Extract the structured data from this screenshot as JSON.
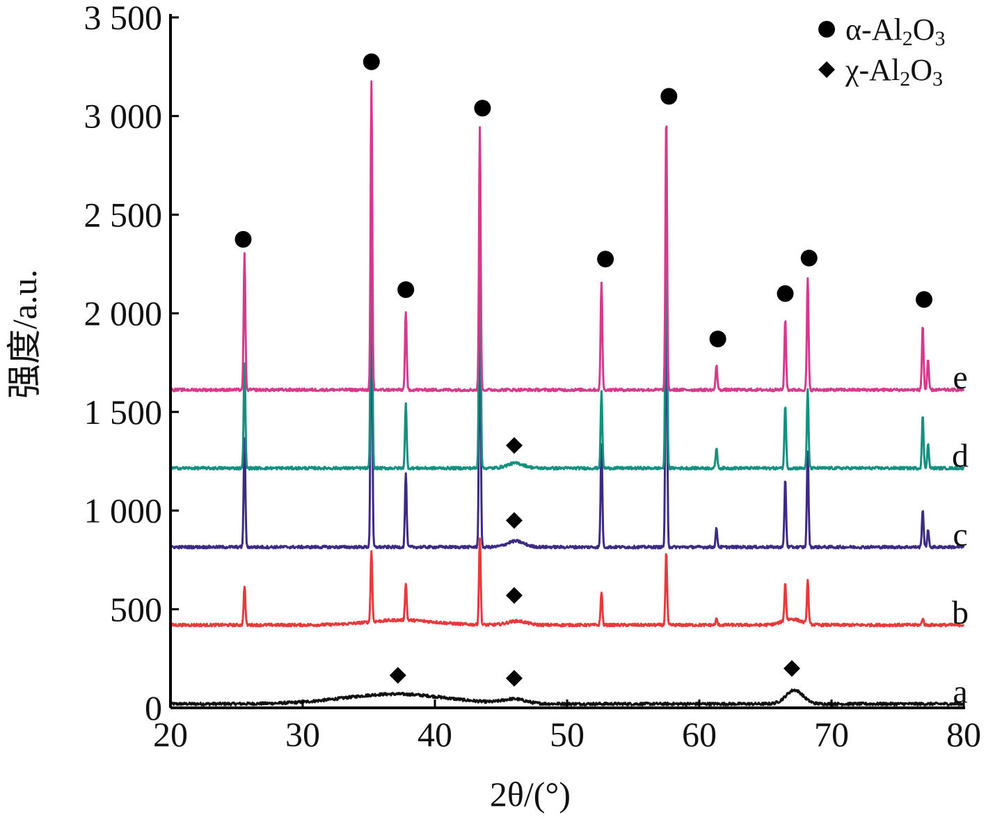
{
  "chart_data": {
    "type": "line",
    "xlabel": "2θ/(°)",
    "ylabel": "强度/a.u.",
    "xlim": [
      20,
      80
    ],
    "ylim": [
      0,
      3500
    ],
    "xticks": [
      20,
      30,
      40,
      50,
      60,
      70,
      80
    ],
    "yticks": [
      0,
      500,
      1000,
      1500,
      2000,
      2500,
      3000,
      3500
    ],
    "ytick_labels": [
      "0",
      "500",
      "1 000",
      "1 500",
      "2 000",
      "2 500",
      "3 000",
      "3 500"
    ],
    "grid": false,
    "legend_position": "top-right",
    "legend": [
      {
        "marker": "circle",
        "label": "α-Al2O3",
        "parts": [
          "α-Al",
          "2",
          "O",
          "3"
        ]
      },
      {
        "marker": "diamond",
        "label": "χ-Al2O3",
        "parts": [
          "χ-Al",
          "2",
          "O",
          "3"
        ]
      }
    ],
    "series": [
      {
        "name": "a",
        "color": "#111111",
        "baseline": 20,
        "humps": [
          {
            "x": 37.0,
            "height": 50,
            "width": 5.5
          },
          {
            "x": 46.0,
            "height": 22,
            "width": 1.2
          },
          {
            "x": 67.2,
            "height": 70,
            "width": 0.9
          }
        ],
        "peaks": []
      },
      {
        "name": "b",
        "color": "#e8393c",
        "baseline": 420,
        "humps": [
          {
            "x": 37.5,
            "height": 25,
            "width": 3.5
          },
          {
            "x": 46.2,
            "height": 20,
            "width": 1.0
          },
          {
            "x": 67.0,
            "height": 30,
            "width": 1.0
          }
        ],
        "peaks": [
          {
            "x": 25.6,
            "y": 620
          },
          {
            "x": 35.2,
            "y": 780
          },
          {
            "x": 37.8,
            "y": 610
          },
          {
            "x": 43.4,
            "y": 860
          },
          {
            "x": 52.6,
            "y": 590
          },
          {
            "x": 57.5,
            "y": 790
          },
          {
            "x": 61.3,
            "y": 450
          },
          {
            "x": 66.5,
            "y": 610
          },
          {
            "x": 68.2,
            "y": 640
          },
          {
            "x": 76.9,
            "y": 455
          }
        ]
      },
      {
        "name": "c",
        "color": "#3d2a85",
        "baseline": 815,
        "humps": [
          {
            "x": 46.1,
            "height": 30,
            "width": 0.9
          }
        ],
        "peaks": [
          {
            "x": 25.6,
            "y": 1370
          },
          {
            "x": 35.2,
            "y": 2320
          },
          {
            "x": 37.8,
            "y": 1190
          },
          {
            "x": 43.4,
            "y": 2130
          },
          {
            "x": 52.6,
            "y": 1340
          },
          {
            "x": 57.5,
            "y": 2290
          },
          {
            "x": 61.3,
            "y": 910
          },
          {
            "x": 66.5,
            "y": 1160
          },
          {
            "x": 68.2,
            "y": 1300
          },
          {
            "x": 76.9,
            "y": 1010
          },
          {
            "x": 77.3,
            "y": 900
          }
        ]
      },
      {
        "name": "d",
        "color": "#13907f",
        "baseline": 1215,
        "humps": [
          {
            "x": 46.1,
            "height": 25,
            "width": 0.9
          }
        ],
        "peaks": [
          {
            "x": 25.6,
            "y": 1750
          },
          {
            "x": 35.2,
            "y": 2800
          },
          {
            "x": 37.8,
            "y": 1540
          },
          {
            "x": 43.4,
            "y": 2700
          },
          {
            "x": 52.6,
            "y": 1600
          },
          {
            "x": 57.5,
            "y": 2870
          },
          {
            "x": 61.3,
            "y": 1320
          },
          {
            "x": 66.5,
            "y": 1540
          },
          {
            "x": 68.2,
            "y": 1610
          },
          {
            "x": 76.9,
            "y": 1480
          },
          {
            "x": 77.3,
            "y": 1340
          }
        ]
      },
      {
        "name": "e",
        "color": "#d63a8c",
        "baseline": 1612,
        "humps": [],
        "peaks": [
          {
            "x": 25.6,
            "y": 2300
          },
          {
            "x": 35.2,
            "y": 3170
          },
          {
            "x": 37.8,
            "y": 2010
          },
          {
            "x": 43.4,
            "y": 2940
          },
          {
            "x": 52.6,
            "y": 2160
          },
          {
            "x": 57.5,
            "y": 3010
          },
          {
            "x": 61.3,
            "y": 1740
          },
          {
            "x": 66.5,
            "y": 1970
          },
          {
            "x": 68.2,
            "y": 2180
          },
          {
            "x": 76.9,
            "y": 1940
          },
          {
            "x": 77.3,
            "y": 1760
          }
        ]
      }
    ],
    "annotations": [
      {
        "marker": "circle",
        "x": 25.5,
        "y": 2375
      },
      {
        "marker": "circle",
        "x": 35.2,
        "y": 3275
      },
      {
        "marker": "circle",
        "x": 37.8,
        "y": 2120
      },
      {
        "marker": "circle",
        "x": 43.6,
        "y": 3040
      },
      {
        "marker": "circle",
        "x": 52.9,
        "y": 2275
      },
      {
        "marker": "circle",
        "x": 57.7,
        "y": 3100
      },
      {
        "marker": "circle",
        "x": 61.4,
        "y": 1870
      },
      {
        "marker": "circle",
        "x": 66.5,
        "y": 2100
      },
      {
        "marker": "circle",
        "x": 68.3,
        "y": 2280
      },
      {
        "marker": "circle",
        "x": 77.0,
        "y": 2070
      },
      {
        "marker": "diamond",
        "x": 46.0,
        "y": 1330
      },
      {
        "marker": "diamond",
        "x": 46.0,
        "y": 950
      },
      {
        "marker": "diamond",
        "x": 46.0,
        "y": 570
      },
      {
        "marker": "diamond",
        "x": 37.2,
        "y": 165
      },
      {
        "marker": "diamond",
        "x": 46.0,
        "y": 150
      },
      {
        "marker": "diamond",
        "x": 67.0,
        "y": 200
      }
    ]
  }
}
